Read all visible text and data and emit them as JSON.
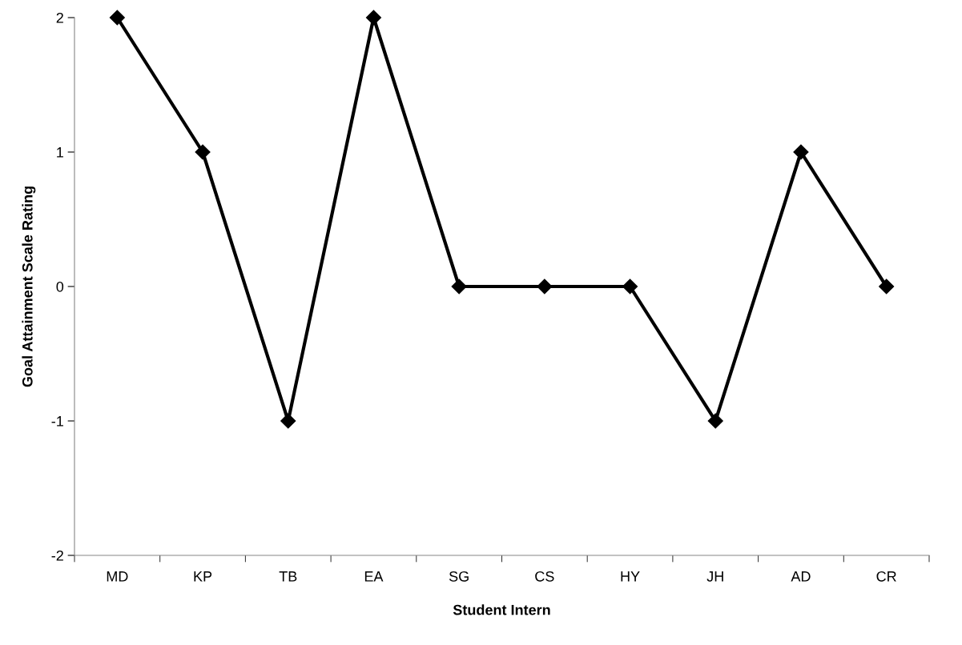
{
  "chart_data": {
    "type": "line",
    "xlabel": "Student Intern",
    "ylabel": "Goal Attainment Scale Rating",
    "categories": [
      "MD",
      "KP",
      "TB",
      "EA",
      "SG",
      "CS",
      "HY",
      "JH",
      "AD",
      "CR"
    ],
    "series": [
      {
        "color": "#000000",
        "values": [
          2,
          1,
          -1,
          2,
          0,
          0,
          0,
          -1,
          1,
          0
        ]
      }
    ],
    "ylim": [
      -2,
      2
    ],
    "yticks": [
      -2,
      -1,
      0,
      1,
      2
    ],
    "grid": false,
    "marker": "diamond",
    "line_style": "solid"
  }
}
